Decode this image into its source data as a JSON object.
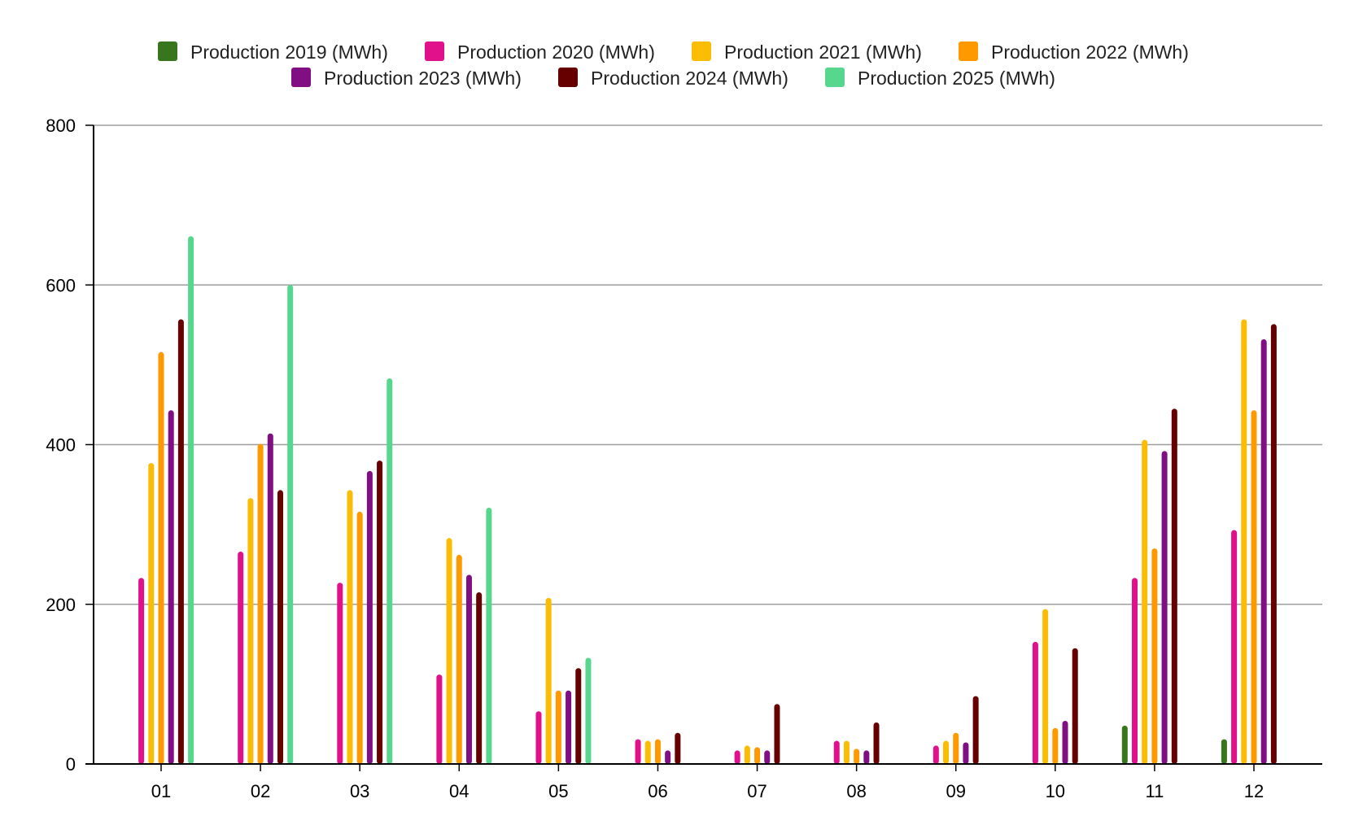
{
  "chart_data": {
    "type": "bar",
    "title": "",
    "xlabel": "",
    "ylabel": "",
    "categories": [
      "01",
      "02",
      "03",
      "04",
      "05",
      "06",
      "07",
      "08",
      "09",
      "10",
      "11",
      "12"
    ],
    "ylim": [
      0,
      800
    ],
    "yticks": [
      "0",
      "200",
      "400",
      "600",
      "800"
    ],
    "grid": true,
    "legend_position": "top",
    "series": [
      {
        "name": "Production 2019 (MWh)",
        "color": "#38761d",
        "values": [
          null,
          null,
          null,
          null,
          null,
          null,
          null,
          null,
          null,
          null,
          48,
          31
        ]
      },
      {
        "name": "Production 2020 (MWh)",
        "color": "#e0118a",
        "values": [
          233,
          266,
          227,
          112,
          66,
          31,
          17,
          29,
          23,
          153,
          233,
          293
        ]
      },
      {
        "name": "Production 2021 (MWh)",
        "color": "#fbbc04",
        "values": [
          377,
          333,
          343,
          283,
          208,
          29,
          23,
          29,
          29,
          194,
          406,
          557
        ]
      },
      {
        "name": "Production 2022 (MWh)",
        "color": "#ff9900",
        "values": [
          516,
          401,
          316,
          262,
          92,
          31,
          21,
          19,
          39,
          45,
          270,
          443
        ]
      },
      {
        "name": "Production 2023 (MWh)",
        "color": "#7f0f82",
        "values": [
          443,
          414,
          367,
          237,
          92,
          17,
          17,
          17,
          27,
          54,
          392,
          532
        ]
      },
      {
        "name": "Production 2024 (MWh)",
        "color": "#660000",
        "values": [
          557,
          343,
          380,
          215,
          120,
          39,
          75,
          52,
          85,
          145,
          445,
          551
        ]
      },
      {
        "name": "Production 2025 (MWh)",
        "color": "#57d68d",
        "values": [
          661,
          600,
          483,
          321,
          133,
          null,
          null,
          null,
          null,
          null,
          null,
          null
        ]
      }
    ]
  }
}
